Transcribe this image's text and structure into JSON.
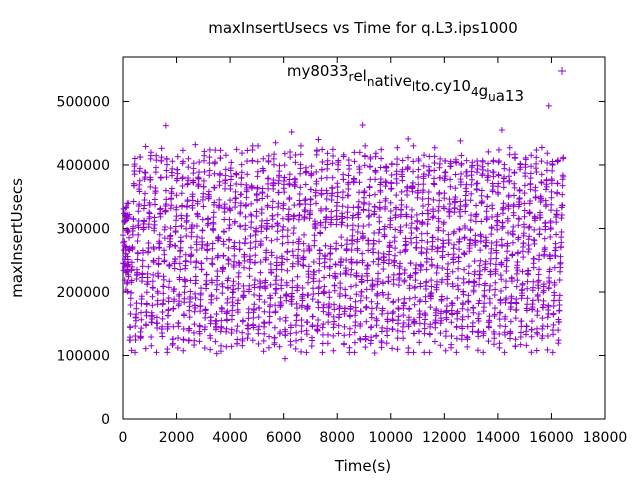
{
  "chart_data": {
    "type": "scatter",
    "title": "maxInsertUsecs vs Time for q.L3.ips1000",
    "xlabel": "Time(s)",
    "ylabel": "maxInsertUsecs",
    "xlim": [
      0,
      18000
    ],
    "ylim": [
      0,
      570000
    ],
    "x_ticks": [
      0,
      2000,
      4000,
      6000,
      8000,
      10000,
      12000,
      14000,
      16000,
      18000
    ],
    "x_tick_labels": [
      "0",
      "2000",
      "4000",
      "6000",
      "8000",
      "10000",
      "12000",
      "14000",
      "16000",
      "18000"
    ],
    "y_ticks": [
      0,
      100000,
      200000,
      300000,
      400000,
      500000
    ],
    "y_tick_labels": [
      "0",
      "100000",
      "200000",
      "300000",
      "400000",
      "500000"
    ],
    "grid": false,
    "legend_position": "top-right",
    "series": [
      {
        "name": "my8033_rel_native_lto.cy10_4g_u_a13",
        "name_parts": [
          {
            "text": "my8033",
            "sub": false
          },
          {
            "text": "r",
            "sub": true
          },
          {
            "text": "el",
            "sub": false
          },
          {
            "text": "n",
            "sub": true
          },
          {
            "text": "ative",
            "sub": false
          },
          {
            "text": "l",
            "sub": true
          },
          {
            "text": "to.cy10",
            "sub": false
          },
          {
            "text": "4",
            "sub": true
          },
          {
            "text": "g",
            "sub": false
          },
          {
            "text": "u",
            "sub": true
          },
          {
            "text": "a13",
            "sub": false
          }
        ],
        "color": "#9400d3",
        "marker": "plus",
        "x_range": [
          0,
          16450
        ],
        "cycle_period_s": 200,
        "cycle_min": 120000,
        "cycle_max": 420000,
        "initial_segment": {
          "x_range": [
            0,
            250
          ],
          "y_range": [
            200000,
            340000
          ]
        },
        "outliers": [
          {
            "x": 1600,
            "y": 462000
          },
          {
            "x": 6300,
            "y": 452000
          },
          {
            "x": 8950,
            "y": 463000
          },
          {
            "x": 14150,
            "y": 455000
          },
          {
            "x": 15900,
            "y": 493000
          },
          {
            "x": 10650,
            "y": 441000
          },
          {
            "x": 12600,
            "y": 438000
          },
          {
            "x": 2700,
            "y": 432000
          },
          {
            "x": 7300,
            "y": 440000
          },
          {
            "x": 5700,
            "y": 435000
          },
          {
            "x": 6050,
            "y": 95000
          },
          {
            "x": 320,
            "y": 108000
          },
          {
            "x": 9400,
            "y": 104000
          },
          {
            "x": 3500,
            "y": 103000
          }
        ]
      }
    ]
  }
}
